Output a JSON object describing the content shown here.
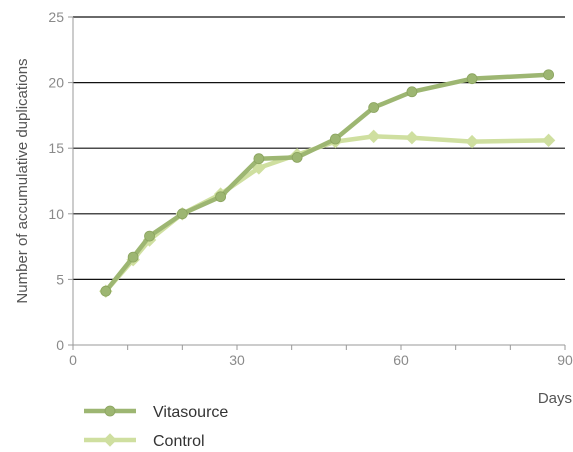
{
  "chart_data": {
    "type": "line",
    "xlabel": "Days",
    "ylabel": "Number of accumulative duplications",
    "xlim": [
      0,
      90
    ],
    "ylim": [
      0,
      25
    ],
    "x_ticks": [
      0,
      30,
      60,
      90
    ],
    "y_ticks": [
      0,
      5,
      10,
      15,
      20,
      25
    ],
    "grid": "horizontal",
    "legend_position": "bottom-left",
    "series": [
      {
        "name": "Vitasource",
        "color": "#9db672",
        "marker": "circle",
        "x": [
          6,
          11,
          14,
          20,
          27,
          34,
          41,
          48,
          55,
          62,
          73,
          87
        ],
        "y": [
          4.1,
          6.7,
          8.3,
          10.0,
          11.3,
          14.2,
          14.3,
          15.7,
          18.1,
          19.3,
          20.3,
          20.6
        ]
      },
      {
        "name": "Control",
        "color": "#cfdfa0",
        "marker": "diamond",
        "x": [
          6,
          11,
          14,
          20,
          27,
          34,
          41,
          48,
          55,
          62,
          73,
          87
        ],
        "y": [
          4.1,
          6.5,
          8.0,
          10.0,
          11.5,
          13.5,
          14.5,
          15.5,
          15.9,
          15.8,
          15.5,
          15.6
        ]
      }
    ]
  }
}
